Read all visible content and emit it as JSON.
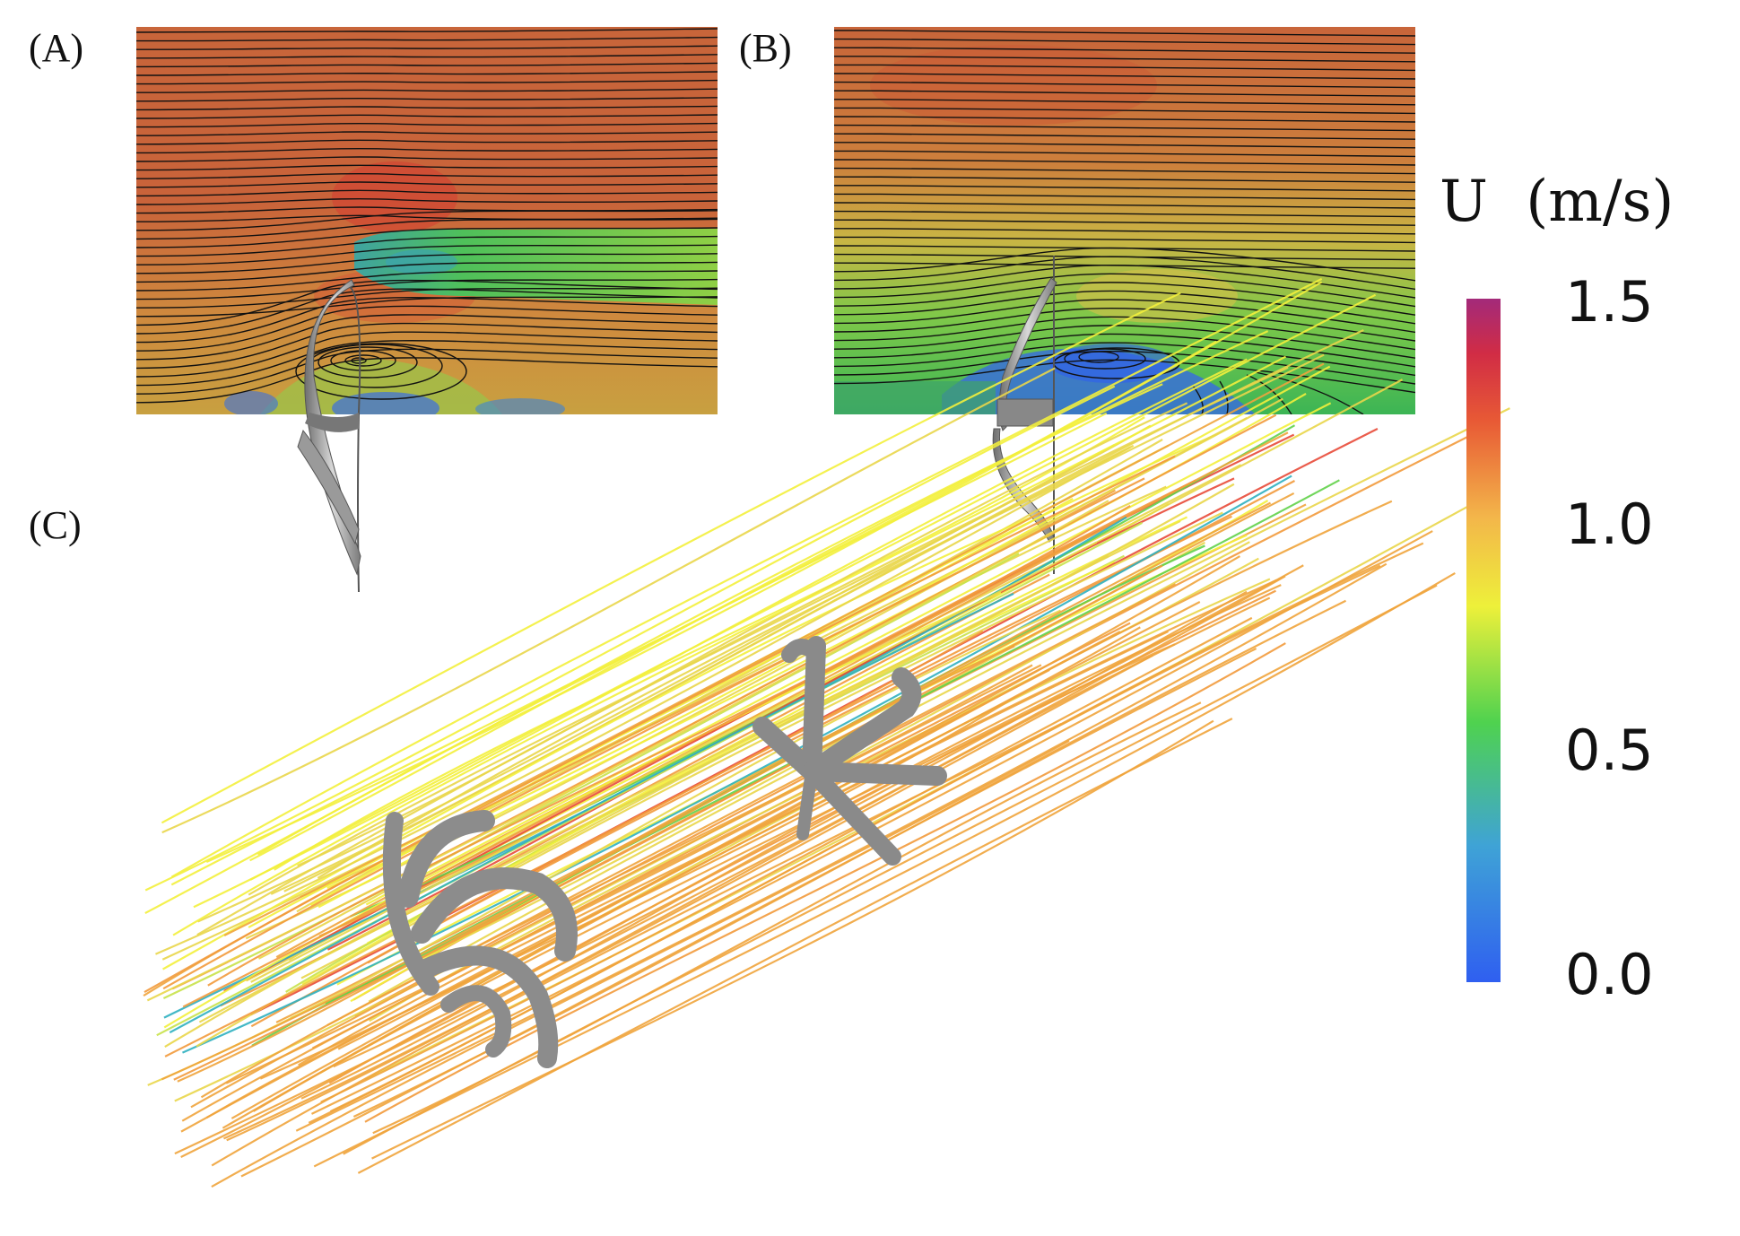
{
  "panels": {
    "a": {
      "label": "(A)"
    },
    "b": {
      "label": "(B)"
    },
    "c": {
      "label": "(C)"
    }
  },
  "colorbar": {
    "variable": "U",
    "unit": "(m/s)",
    "ticks": [
      "1.5",
      "1.0",
      "0.5",
      "0.0"
    ],
    "range": [
      0.0,
      1.5
    ],
    "colors": [
      "#2f5ff0",
      "#3fa3d6",
      "#4fd24f",
      "#e8ef3a",
      "#f3b64a",
      "#e85a35",
      "#d12c45",
      "#a32a7a"
    ]
  },
  "colors": {
    "fast": "#c8653a",
    "mid": "#d7c54a",
    "slow": "#2f5ff0",
    "wake": "#52c44d",
    "blade": "#8a8a8a"
  }
}
